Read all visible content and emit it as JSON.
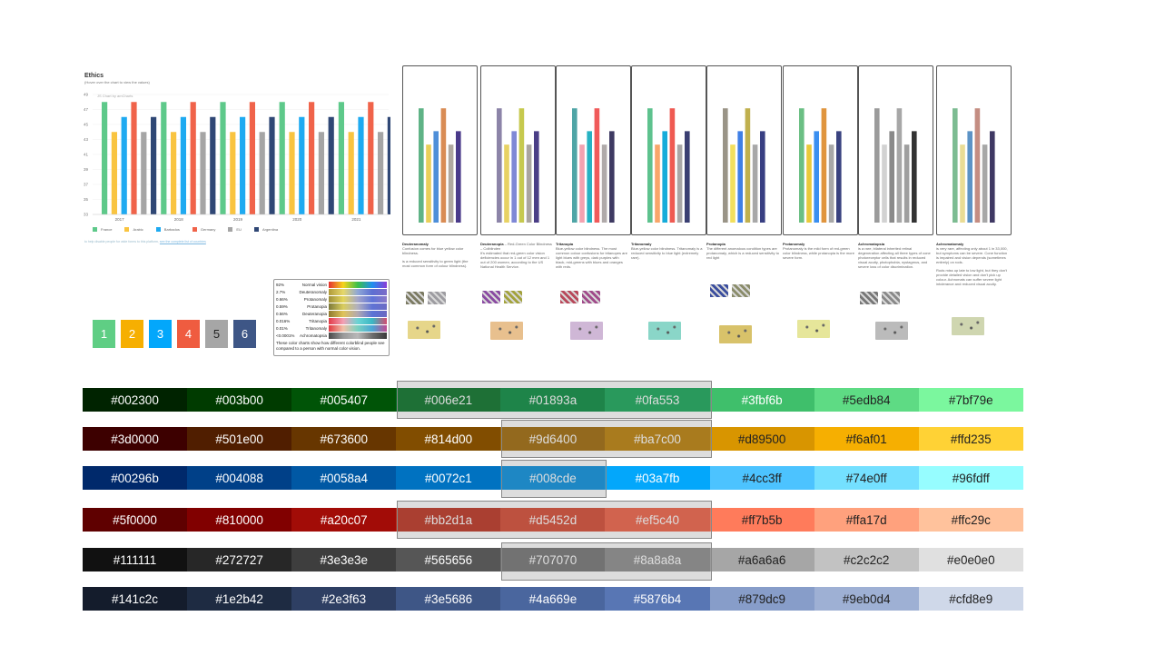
{
  "chart_data": {
    "type": "bar",
    "title": "Ethics",
    "subtitle": "(Hover over the chart to view the values)",
    "credit": "JS Chart by amCharts",
    "categories": [
      "2017",
      "2018",
      "2019",
      "2020",
      "2021"
    ],
    "yticks": [
      "49",
      "47",
      "45",
      "43",
      "41",
      "39",
      "37",
      "35",
      "33"
    ],
    "ylim": [
      33,
      49
    ],
    "series": [
      {
        "name": "France",
        "color": "#5ec98a",
        "values": [
          48,
          48,
          48,
          48,
          48
        ]
      },
      {
        "name": "Arabic",
        "color": "#f9c440",
        "values": [
          44,
          44,
          44,
          44,
          44
        ]
      },
      {
        "name": "Barbados",
        "color": "#1eaaf1",
        "values": [
          46,
          46,
          46,
          46,
          46
        ]
      },
      {
        "name": "Germany",
        "color": "#f0634a",
        "values": [
          48,
          48,
          48,
          48,
          48
        ]
      },
      {
        "name": "EU",
        "color": "#a5a5a5",
        "values": [
          44,
          44,
          44,
          44,
          44
        ]
      },
      {
        "name": "Argentina",
        "color": "#2f4775",
        "values": [
          46,
          46,
          46,
          46,
          46
        ]
      }
    ],
    "note_text": "to help disable people for wide forms to this platform,",
    "note_link": "see the complete list of countries",
    "legend": "bottom"
  },
  "numbered_swatches": [
    {
      "label": "1",
      "color": "#5fce84"
    },
    {
      "label": "2",
      "color": "#f6af01"
    },
    {
      "label": "3",
      "color": "#03a7fb"
    },
    {
      "label": "4",
      "color": "#ef5c40"
    },
    {
      "label": "5",
      "color": "#a6a6a6"
    },
    {
      "label": "6",
      "color": "#3e5686"
    }
  ],
  "perception": {
    "rows": [
      {
        "pct": "92%",
        "name": "Normal vision",
        "grad": [
          "#e53030",
          "#f6d41c",
          "#3bbf4b",
          "#1f8ff0",
          "#8a3bd6"
        ]
      },
      {
        "pct": "2.7%",
        "name": "Deuteranomaly",
        "grad": [
          "#b09a3a",
          "#e6d86a",
          "#8fa7d6",
          "#5d6fd2",
          "#7b6bc8"
        ]
      },
      {
        "pct": "0.66%",
        "name": "Protanomaly",
        "grad": [
          "#9d8f3a",
          "#e4d55a",
          "#a3a5c9",
          "#5f74d8",
          "#8b79c8"
        ]
      },
      {
        "pct": "0.59%",
        "name": "Protanopia",
        "grad": [
          "#7d7a3a",
          "#d9cd5d",
          "#b1b0c0",
          "#5f73d5",
          "#6c6bc4"
        ]
      },
      {
        "pct": "0.56%",
        "name": "Deuteranopia",
        "grad": [
          "#8f7a2f",
          "#dfc35a",
          "#b2a9b0",
          "#5a72d6",
          "#6a68c0"
        ]
      },
      {
        "pct": "0.016%",
        "name": "Tritanopia",
        "grad": [
          "#e23b48",
          "#f4a0b4",
          "#6ad4d4",
          "#3bb7c4",
          "#d24b70"
        ]
      },
      {
        "pct": "0.01%",
        "name": "Tritanomaly",
        "grad": [
          "#e03840",
          "#f2c0a8",
          "#78d0c0",
          "#4aa6d6",
          "#c04a90"
        ]
      },
      {
        "pct": "<0.0001%",
        "name": "Achromatopsia",
        "grad": [
          "#4a4a4a",
          "#9a9a9a",
          "#b8b8b8",
          "#6e6e6e",
          "#3a3a3a"
        ]
      }
    ],
    "note": "These color charts show how different colorblind people see compared to a person with normal color vision."
  },
  "panels": [
    {
      "title": "Deuteranomaly",
      "text": "Confusion comes for blue yellow color blindness.",
      "text2": "is a reduced sensitivity to green light (the most common form of colour blindness).",
      "colors": [
        "#5fb386",
        "#e9cf59",
        "#4e8fd9",
        "#d98c55",
        "#b0a8a0",
        "#4a3a8a"
      ]
    },
    {
      "title": "Deuteranopia",
      "sub": "– Red-Green Color Blindness – Colblinden",
      "text": "It’s estimated that red-green color vision deficiencies occur in 1 out of 12 men and 1 out of 200 women, according to the US National Health Service.",
      "colors": [
        "#8c84a8",
        "#e8d264",
        "#7f88d6",
        "#c6c94e",
        "#aaa59f",
        "#4a3e86"
      ]
    },
    {
      "title": "Tritanopia",
      "text": "Blue-yellow color blindness. The most common colour confusions for tritanopes are light blues with greys, dark purples with black, mid-greens with blues and oranges with reds.",
      "colors": [
        "#4fa5a6",
        "#f3a2b0",
        "#26b2c2",
        "#f05a5a",
        "#b0aaaa",
        "#3e3a62"
      ]
    },
    {
      "title": "Tritanomaly",
      "text": "Blue-yellow color blindness. Tritanomaly is a reduced sensitivity to blue light (extremely rare).",
      "colors": [
        "#5ec28e",
        "#f8a66a",
        "#16acda",
        "#ef5a52",
        "#a9a7a7",
        "#3a3f72"
      ]
    },
    {
      "title": "Protanopia",
      "text": "The different anomalous condition types are protanomaly, which is a reduced sensitivity to red light",
      "colors": [
        "#9a9487",
        "#f2df5d",
        "#3f7fe6",
        "#c0b04e",
        "#a8a8a8",
        "#383f82"
      ]
    },
    {
      "title": "Protanomaly",
      "text": "Protanomaly is the mild form of red-green color blindness, while protanopia is the more severe form.",
      "colors": [
        "#6bbf84",
        "#e9c93a",
        "#3a8ff0",
        "#e0953e",
        "#a8a8a8",
        "#3a4380"
      ]
    },
    {
      "title": "Achromatopsia",
      "text": "is a rare, bilateral inherited retinal degeneration affecting all three types of cone photoreceptor cells that results in reduced visual acuity, photophobia, nystagmus, and severe loss of color discrimination.",
      "colors": [
        "#9b9b9b",
        "#d2d2d2",
        "#8a8a8a",
        "#a7a7a7",
        "#9f9f9f",
        "#333333"
      ]
    },
    {
      "title": "Achromatomaly",
      "text": "is very rare, affecting only about 1 in 33,000, but symptoms can be severe. Cone function is impaired and vision depends (sometimes entirely) on rods.",
      "text2": "Rods miss up late to low light, but they don't provide detailed vision and don't pick up colour. Achromats can suffer severe light intolerance and reduced visual acuity.",
      "colors": [
        "#7dbc92",
        "#eadc95",
        "#5c93c6",
        "#c48d82",
        "#a7a7a7",
        "#3f3863"
      ]
    }
  ],
  "palettes": [
    {
      "cells": [
        {
          "hex": "#002300"
        },
        {
          "hex": "#003b00"
        },
        {
          "hex": "#005407"
        },
        {
          "hex": "#006e21"
        },
        {
          "hex": "#01893a"
        },
        {
          "hex": "#0fa553"
        },
        {
          "hex": "#3fbf6b"
        },
        {
          "hex": "#5edb84"
        },
        {
          "hex": "#7bf79e"
        }
      ]
    },
    {
      "cells": [
        {
          "hex": "#3d0000"
        },
        {
          "hex": "#501e00"
        },
        {
          "hex": "#673600"
        },
        {
          "hex": "#814d00"
        },
        {
          "hex": "#9d6400"
        },
        {
          "hex": "#ba7c00"
        },
        {
          "hex": "#d89500"
        },
        {
          "hex": "#f6af01"
        },
        {
          "hex": "#ffd235"
        }
      ]
    },
    {
      "cells": [
        {
          "hex": "#00296b"
        },
        {
          "hex": "#004088"
        },
        {
          "hex": "#0058a4"
        },
        {
          "hex": "#0072c1"
        },
        {
          "hex": "#008cde"
        },
        {
          "hex": "#03a7fb"
        },
        {
          "hex": "#4cc3ff"
        },
        {
          "hex": "#74e0ff"
        },
        {
          "hex": "#96fdff"
        }
      ]
    },
    {
      "cells": [
        {
          "hex": "#5f0000"
        },
        {
          "hex": "#810000"
        },
        {
          "hex": "#a20c07"
        },
        {
          "hex": "#bb2d1a"
        },
        {
          "hex": "#d5452d"
        },
        {
          "hex": "#ef5c40"
        },
        {
          "hex": "#ff7b5b"
        },
        {
          "hex": "#ffa17d"
        },
        {
          "hex": "#ffc29c"
        }
      ]
    },
    {
      "cells": [
        {
          "hex": "#111111"
        },
        {
          "hex": "#272727"
        },
        {
          "hex": "#3e3e3e"
        },
        {
          "hex": "#565656"
        },
        {
          "hex": "#707070"
        },
        {
          "hex": "#8a8a8a"
        },
        {
          "hex": "#a6a6a6"
        },
        {
          "hex": "#c2c2c2"
        },
        {
          "hex": "#e0e0e0"
        }
      ]
    },
    {
      "cells": [
        {
          "hex": "#141c2c"
        },
        {
          "hex": "#1e2b42"
        },
        {
          "hex": "#2e3f63"
        },
        {
          "hex": "#3e5686"
        },
        {
          "hex": "#4a669e"
        },
        {
          "hex": "#5876b4"
        },
        {
          "hex": "#879dc9"
        },
        {
          "hex": "#9eb0d4"
        },
        {
          "hex": "#cfd8e9"
        }
      ]
    }
  ]
}
